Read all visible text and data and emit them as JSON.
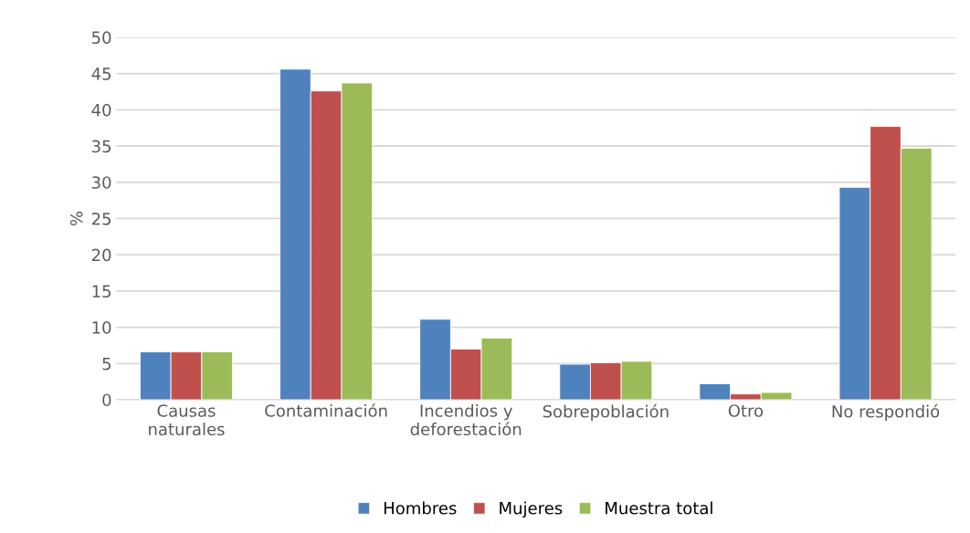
{
  "chart_data": {
    "type": "bar",
    "ylabel": "%",
    "categories": [
      "Causas\nnaturales",
      "Contaminación",
      "Incendios y\ndeforestación",
      "Sobrepoblación",
      "Otro",
      "No respondió"
    ],
    "series": [
      {
        "name": "Hombres",
        "color": "#4f81bd",
        "values": [
          6.6,
          45.6,
          11.1,
          4.9,
          2.2,
          29.3
        ]
      },
      {
        "name": "Mujeres",
        "color": "#c0504d",
        "values": [
          6.6,
          42.6,
          7.0,
          5.1,
          0.8,
          37.7
        ]
      },
      {
        "name": "Muestra total",
        "color": "#9bbb59",
        "values": [
          6.6,
          43.7,
          8.5,
          5.3,
          1.0,
          34.7
        ]
      }
    ],
    "ylim": [
      0,
      50
    ],
    "yticks": [
      0,
      5,
      10,
      15,
      20,
      25,
      30,
      35,
      40,
      45,
      50
    ],
    "grid": "y",
    "legend": "bottom"
  }
}
